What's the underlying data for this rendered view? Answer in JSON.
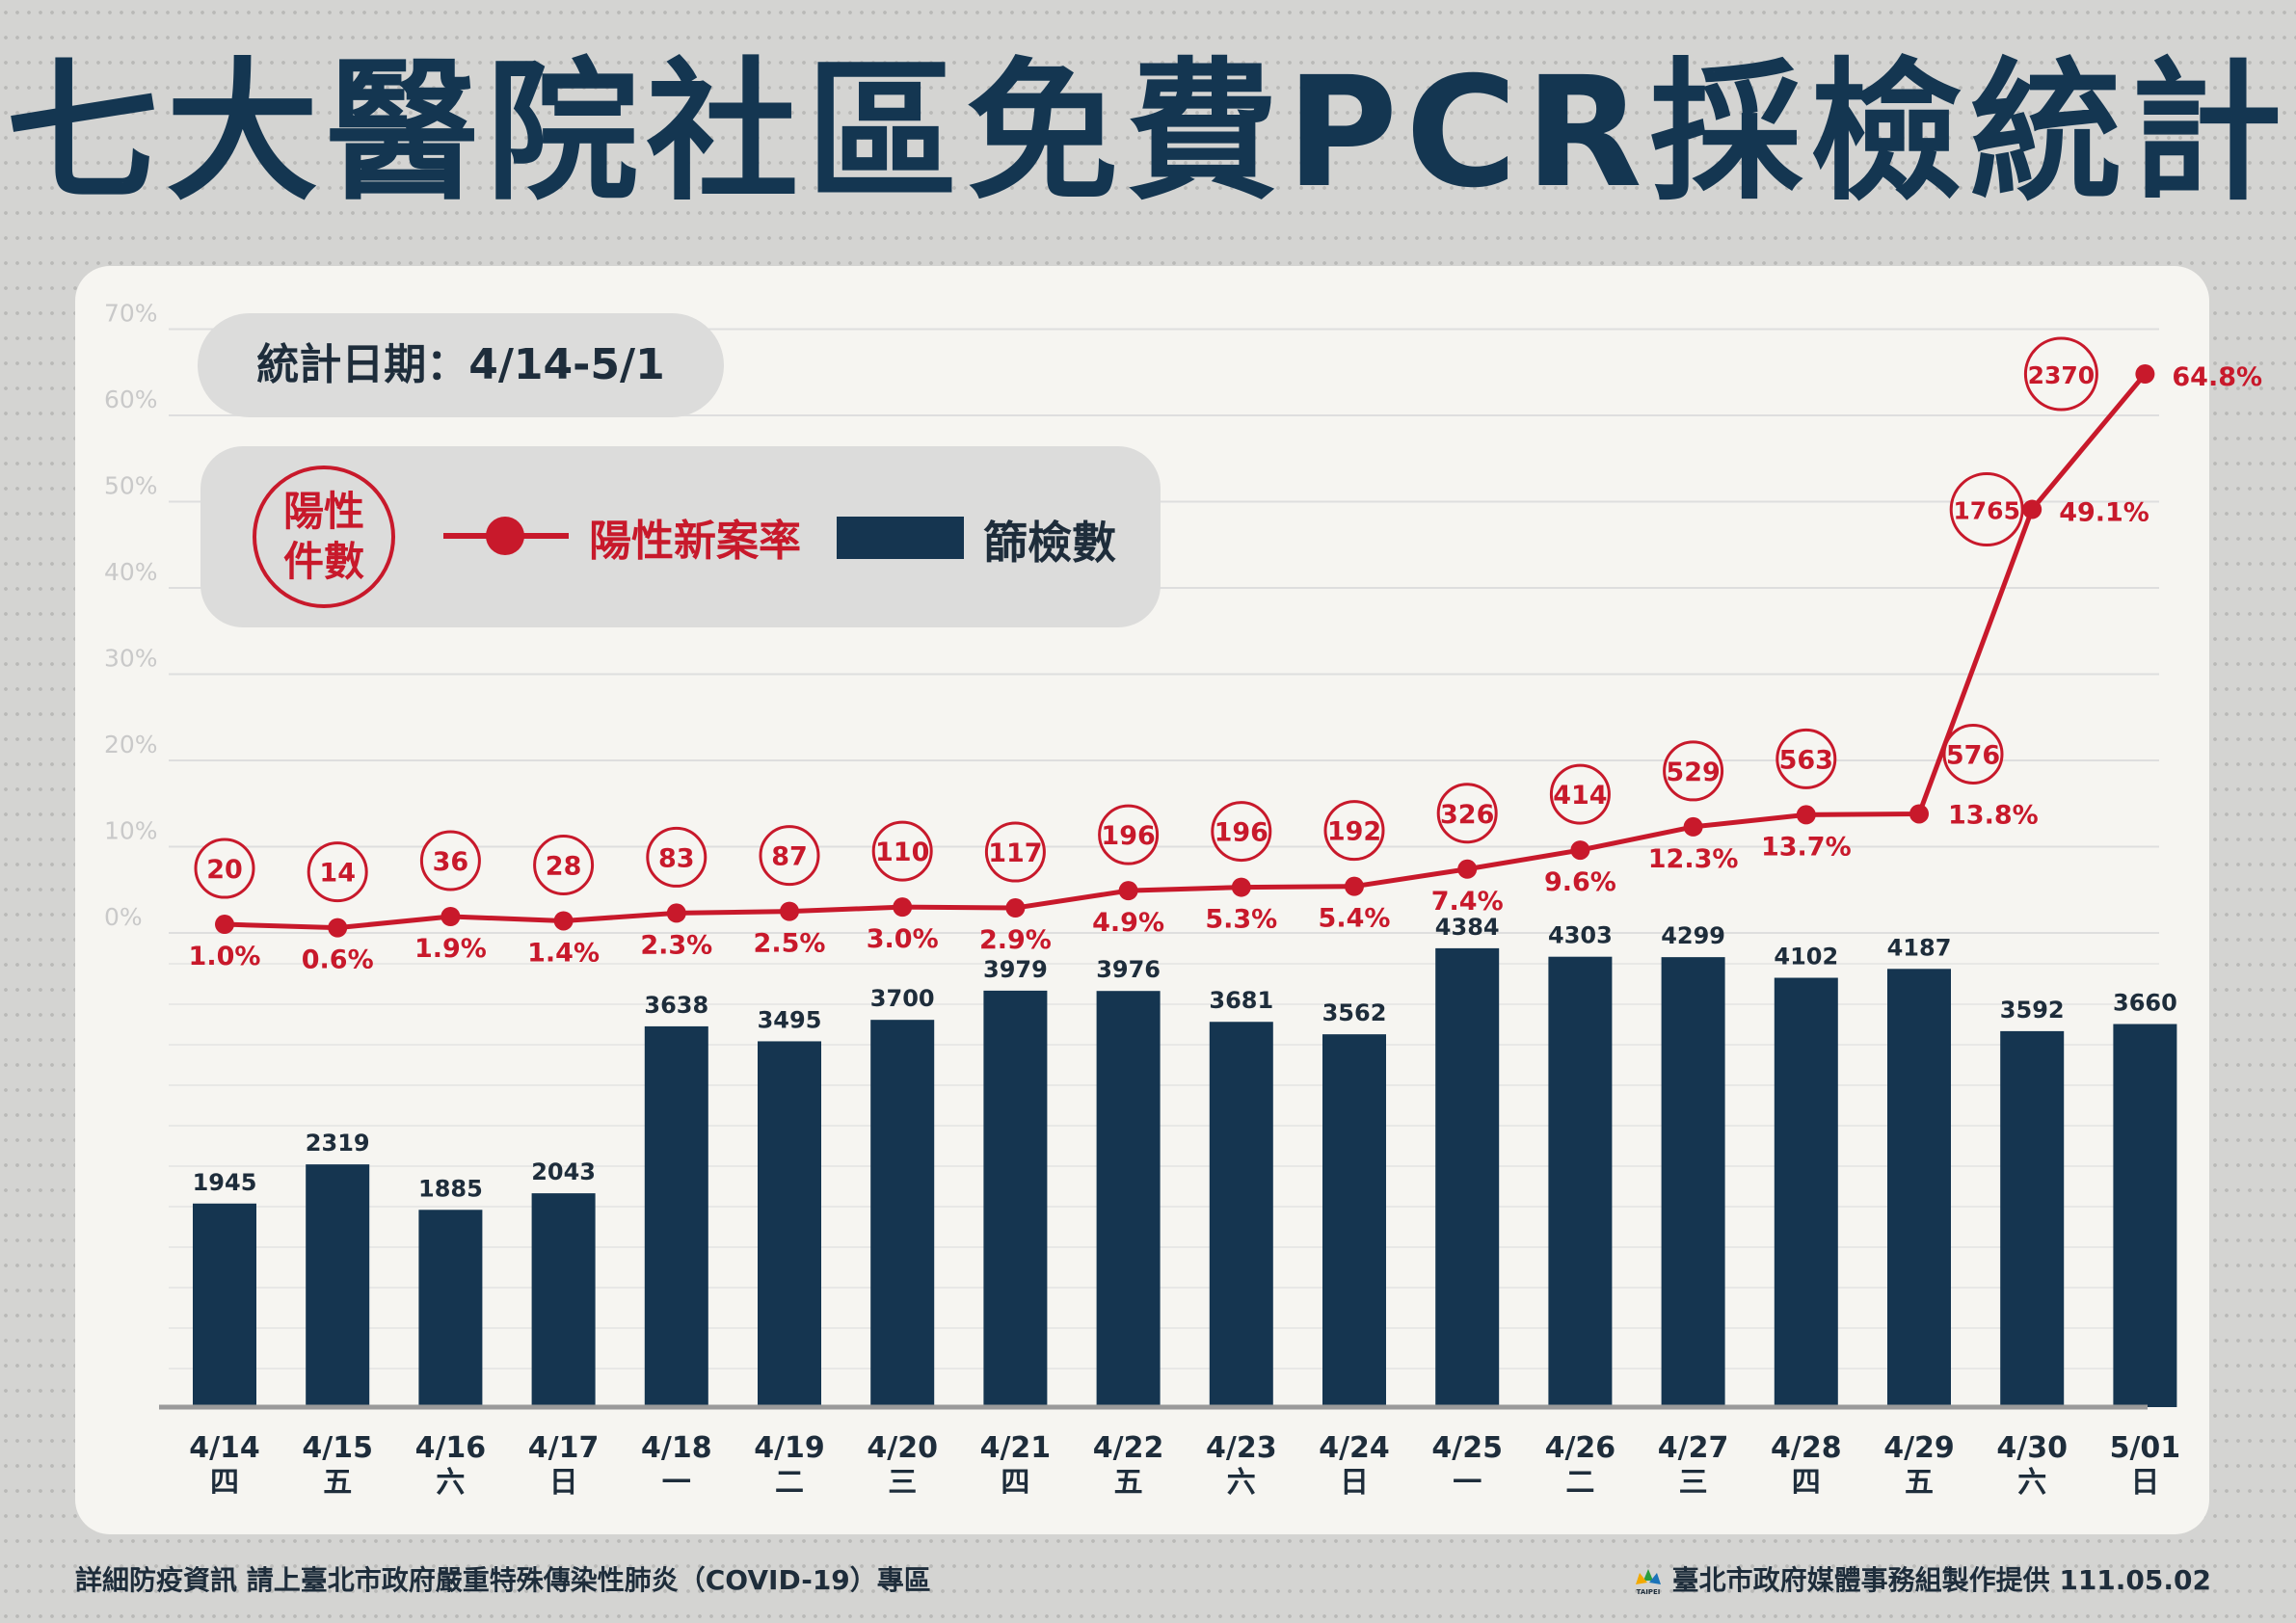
{
  "title": "七大醫院社區免費PCR採檢統計",
  "date_range_label": "統計日期：4/14-5/1",
  "legend": {
    "circle_label": "陽性件數",
    "line_label": "陽性新案率",
    "bar_label": "篩檢數"
  },
  "footer": {
    "left": "詳細防疫資訊 請上臺北市政府嚴重特殊傳染性肺炎（COVID-19）專區",
    "right": "臺北市政府媒體事務組製作提供 111.05.02",
    "logo_text": "TAIPEI"
  },
  "colors": {
    "bar": "#153550",
    "line": "#c8192b",
    "title": "#143651",
    "grid": "#dedede",
    "tick_label": "#c9c9c9"
  },
  "chart_data": {
    "type": "bar",
    "categories": [
      "4/14",
      "4/15",
      "4/16",
      "4/17",
      "4/18",
      "4/19",
      "4/20",
      "4/21",
      "4/22",
      "4/23",
      "4/24",
      "4/25",
      "4/26",
      "4/27",
      "4/28",
      "4/29",
      "4/30",
      "5/01"
    ],
    "weekdays": [
      "四",
      "五",
      "六",
      "日",
      "一",
      "二",
      "三",
      "四",
      "五",
      "六",
      "日",
      "一",
      "二",
      "三",
      "四",
      "五",
      "六",
      "日"
    ],
    "series": [
      {
        "name": "篩檢數",
        "type": "bar",
        "values": [
          1945,
          2319,
          1885,
          2043,
          3638,
          3495,
          3700,
          3979,
          3976,
          3681,
          3562,
          4384,
          4303,
          4299,
          4102,
          4187,
          3592,
          3660
        ]
      },
      {
        "name": "陽性新案率",
        "type": "line",
        "values": [
          1.0,
          0.6,
          1.9,
          1.4,
          2.3,
          2.5,
          3.0,
          2.9,
          4.9,
          5.3,
          5.4,
          7.4,
          9.6,
          12.3,
          13.7,
          13.8,
          49.1,
          64.8
        ],
        "labels": [
          "1.0%",
          "0.6%",
          "1.9%",
          "1.4%",
          "2.3%",
          "2.5%",
          "3.0%",
          "2.9%",
          "4.9%",
          "5.3%",
          "5.4%",
          "7.4%",
          "9.6%",
          "12.3%",
          "13.7%",
          "13.8%",
          "49.1%",
          "64.8%"
        ]
      },
      {
        "name": "陽性件數",
        "type": "annotation",
        "values": [
          20,
          14,
          36,
          28,
          83,
          87,
          110,
          117,
          196,
          196,
          192,
          326,
          414,
          529,
          563,
          576,
          1765,
          2370
        ]
      }
    ],
    "y_right_ticks": [
      "0%",
      "10%",
      "20%",
      "30%",
      "40%",
      "50%",
      "60%",
      "70%"
    ],
    "rate_range": [
      0,
      70
    ],
    "bar_range": [
      0,
      6000
    ],
    "grid": true
  }
}
